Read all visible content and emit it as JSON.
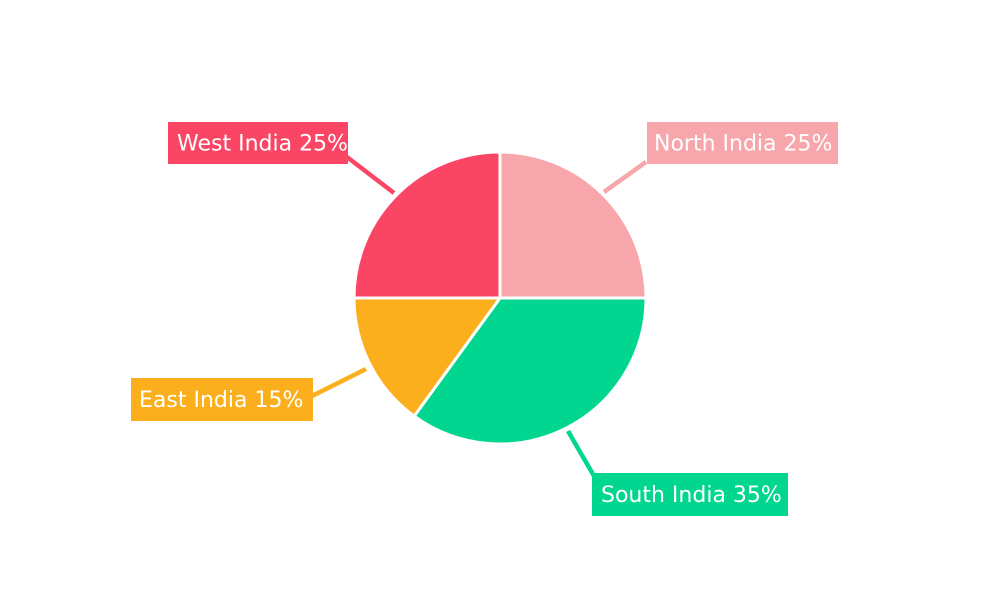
{
  "page": {
    "background": "#ffffff"
  },
  "chart_data": {
    "type": "pie",
    "title": "",
    "unit": "%",
    "direction": "clockwise",
    "start_angle": "12-oclock",
    "label_text_color": "#ffffff",
    "separator_color": "#ffffff",
    "legend_position": "callout-labels",
    "slices": [
      {
        "label": "North India",
        "value": 25,
        "display": "North India 25%",
        "color": "#F7A6AB"
      },
      {
        "label": "South India",
        "value": 35,
        "display": "South India 35%",
        "color": "#00D68F"
      },
      {
        "label": "East India",
        "value": 15,
        "display": "East India 15%",
        "color": "#FBAF1C"
      },
      {
        "label": "West India",
        "value": 25,
        "display": "West India 25%",
        "color": "#FB4565"
      }
    ]
  }
}
